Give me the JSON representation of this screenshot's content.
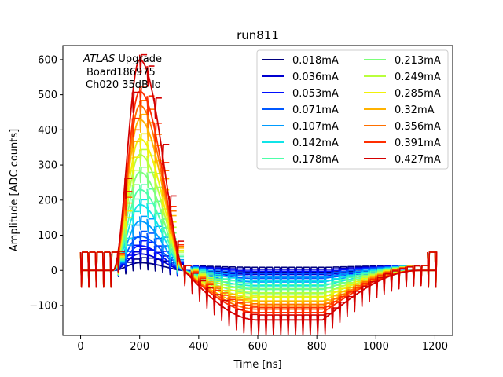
{
  "chart_data": {
    "type": "line",
    "title": "run811",
    "xlabel": "Time [ns]",
    "ylabel": "Amplitude [ADC counts]",
    "xlim": [
      -60,
      1260
    ],
    "ylim": [
      -185,
      640
    ],
    "xticks": [
      0,
      200,
      400,
      600,
      800,
      1000,
      1200
    ],
    "yticks": [
      -100,
      0,
      100,
      200,
      300,
      400,
      500,
      600
    ],
    "grid": false,
    "legend_position": "top-right",
    "legend_columns": 2,
    "annotation": {
      "atlas": "ATLAS",
      "line1_rest": " Upgrade",
      "line2": "Board186975",
      "line3": "Ch020 35dB lo"
    },
    "pulse_shape": {
      "onset_ns": 110,
      "peak_ns": 200,
      "zero_crossing_ns": 350,
      "undershoot_min_ns": 600,
      "undershoot_end_ns": 1150,
      "undershoot_ratio": -0.235,
      "sample_period_ns": 25,
      "pedestal": 52
    },
    "series": [
      {
        "name": "0.018mA",
        "peak": 22,
        "color": "#00007f"
      },
      {
        "name": "0.036mA",
        "peak": 47,
        "color": "#0000d0"
      },
      {
        "name": "0.053mA",
        "peak": 70,
        "color": "#0010ff"
      },
      {
        "name": "0.071mA",
        "peak": 97,
        "color": "#0058ff"
      },
      {
        "name": "0.107mA",
        "peak": 140,
        "color": "#009cff"
      },
      {
        "name": "0.142mA",
        "peak": 187,
        "color": "#10e4e8"
      },
      {
        "name": "0.178mA",
        "peak": 230,
        "color": "#4dffa9"
      },
      {
        "name": "0.213mA",
        "peak": 280,
        "color": "#7cff79"
      },
      {
        "name": "0.249mA",
        "peak": 330,
        "color": "#b9ff3c"
      },
      {
        "name": "0.285mA",
        "peak": 375,
        "color": "#f1f10a"
      },
      {
        "name": "0.32mA",
        "peak": 430,
        "color": "#ffb200"
      },
      {
        "name": "0.356mA",
        "peak": 470,
        "color": "#ff7000"
      },
      {
        "name": "0.391mA",
        "peak": 510,
        "color": "#ff2e00"
      },
      {
        "name": "0.427mA",
        "peak": 600,
        "color": "#d40000"
      }
    ]
  }
}
